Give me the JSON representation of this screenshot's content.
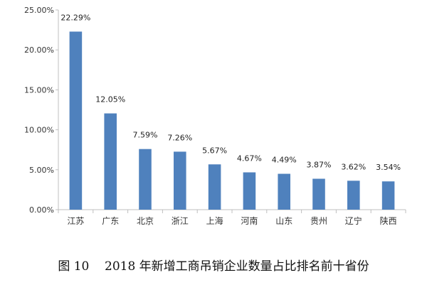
{
  "chart_data": {
    "type": "bar",
    "title": "图 10　2018 年新增工商吊销企业数量占比排名前十省份",
    "caption_prefix": "图 10",
    "caption_text": "2018 年新增工商吊销企业数量占比排名前十省份",
    "categories": [
      "江苏",
      "广东",
      "北京",
      "浙江",
      "上海",
      "河南",
      "山东",
      "贵州",
      "辽宁",
      "陕西"
    ],
    "values": [
      22.29,
      12.05,
      7.59,
      7.26,
      5.67,
      4.67,
      4.49,
      3.87,
      3.62,
      3.54
    ],
    "data_labels": [
      "22.29%",
      "12.05%",
      "7.59%",
      "7.26%",
      "5.67%",
      "4.67%",
      "4.49%",
      "3.87%",
      "3.62%",
      "3.54%"
    ],
    "y_ticks": [
      "0.00%",
      "5.00%",
      "10.00%",
      "15.00%",
      "20.00%",
      "25.00%"
    ],
    "ylim": [
      0,
      25
    ],
    "xlabel": "",
    "ylabel": "",
    "grid": false,
    "bar_color": "#4f81bd",
    "axis_color": "#bfbfbf"
  }
}
